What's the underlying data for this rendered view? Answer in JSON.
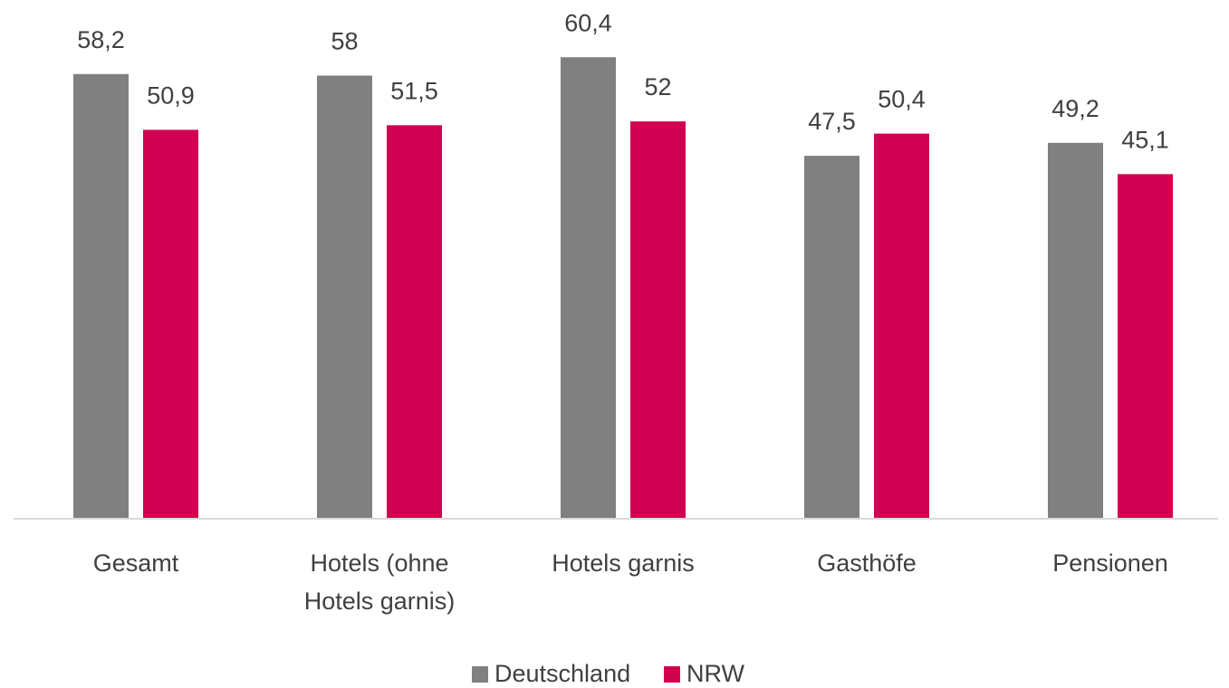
{
  "chart_data": {
    "type": "bar",
    "categories": [
      "Gesamt",
      "Hotels (ohne Hotels garnis)",
      "Hotels garnis",
      "Gasthöfe",
      "Pensionen"
    ],
    "series": [
      {
        "name": "Deutschland",
        "color": "#808080",
        "values": [
          58.2,
          58,
          60.4,
          47.5,
          49.2
        ],
        "value_labels": [
          "58,2",
          "58",
          "60,4",
          "47,5",
          "49,2"
        ]
      },
      {
        "name": "NRW",
        "color": "#d20050",
        "values": [
          50.9,
          51.5,
          52,
          50.4,
          45.1
        ],
        "value_labels": [
          "50,9",
          "51,5",
          "52",
          "50,4",
          "45,1"
        ]
      }
    ],
    "legend": "bottom"
  }
}
